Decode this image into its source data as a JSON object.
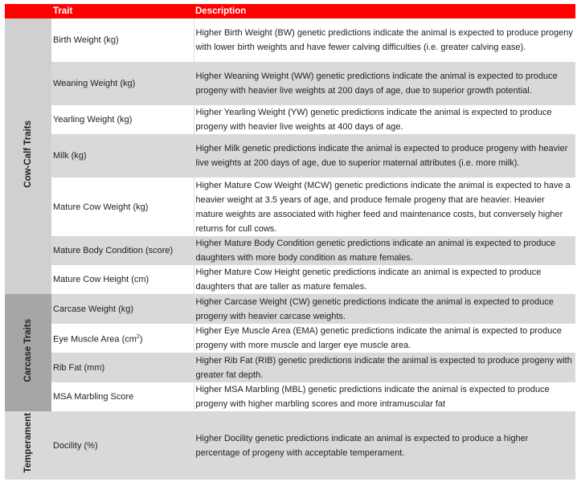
{
  "header": {
    "group": "",
    "trait": "Trait",
    "description": "Description"
  },
  "groups": [
    {
      "label": "Cow-Calf Traits",
      "color": "#d0d0d0",
      "rows": [
        {
          "trait": "Birth Weight (kg)",
          "desc": "Higher Birth Weight (BW) genetic predictions indicate the animal is expected to produce progeny with lower birth weights and have fewer calving difficulties (i.e. greater calving ease)."
        },
        {
          "trait": "Weaning Weight (kg)",
          "desc": "Higher Weaning Weight (WW) genetic predictions indicate the animal is expected to produce progeny with heavier live weights at 200 days of age, due to superior growth potential."
        },
        {
          "trait": "Yearling Weight (kg)",
          "desc": "Higher Yearling Weight (YW) genetic predictions indicate the animal is expected to produce progeny with heavier live weights at 400 days of age."
        },
        {
          "trait": "Milk (kg)",
          "desc": "Higher Milk genetic predictions indicate the animal is expected to produce progeny with heavier live weights at 200 days of age, due to superior maternal attributes (i.e. more milk)."
        },
        {
          "trait": "Mature Cow Weight (kg)",
          "desc": "Higher Mature Cow Weight (MCW) genetic predictions indicate the animal is expected to have a heavier weight at 3.5 years of age, and produce female progeny that are heavier. Heavier mature weights are associated with higher feed and maintenance costs, but conversely higher returns for cull cows."
        },
        {
          "trait": "Mature Body Condition (score)",
          "desc": "Higher Mature Body Condition genetic predictions indicate an animal is expected to produce daughters with more body condition as mature females."
        },
        {
          "trait": "Mature Cow Height (cm)",
          "desc": "Higher Mature Cow Height genetic predictions indicate an animal is expected to produce daughters that are taller as mature females."
        }
      ]
    },
    {
      "label": "Carcase Traits",
      "color": "#a6a6a6",
      "rows": [
        {
          "trait": "Carcase Weight (kg)",
          "desc": "Higher Carcase Weight (CW) genetic predictions indicate the animal is expected to produce progeny with heavier carcase weights."
        },
        {
          "trait": "Eye Muscle Area (cm",
          "sup": "2",
          "trait_end": ")",
          "desc": "Higher Eye Muscle Area (EMA) genetic predictions indicate the animal is expected to produce progeny with more muscle and larger eye muscle area."
        },
        {
          "trait": "Rib Fat (mm)",
          "desc": "Higher Rib Fat (RIB) genetic predictions indicate the animal is expected to produce progeny with greater fat depth."
        },
        {
          "trait": "MSA Marbling Score",
          "desc": "Higher MSA Marbling (MBL) genetic predictions indicate the animal is expected to produce progeny with higher marbling scores and more intramuscular fat"
        }
      ]
    },
    {
      "label": "Temperament",
      "color": "#d9d9d9",
      "rows": [
        {
          "trait": "Docility (%)",
          "desc": "Higher Docility genetic predictions indicate an animal is expected to produce a higher percentage of progeny with acceptable temperament."
        }
      ]
    }
  ],
  "colors": {
    "header": "#ff0000",
    "row_alt": "#d9d9d9"
  }
}
